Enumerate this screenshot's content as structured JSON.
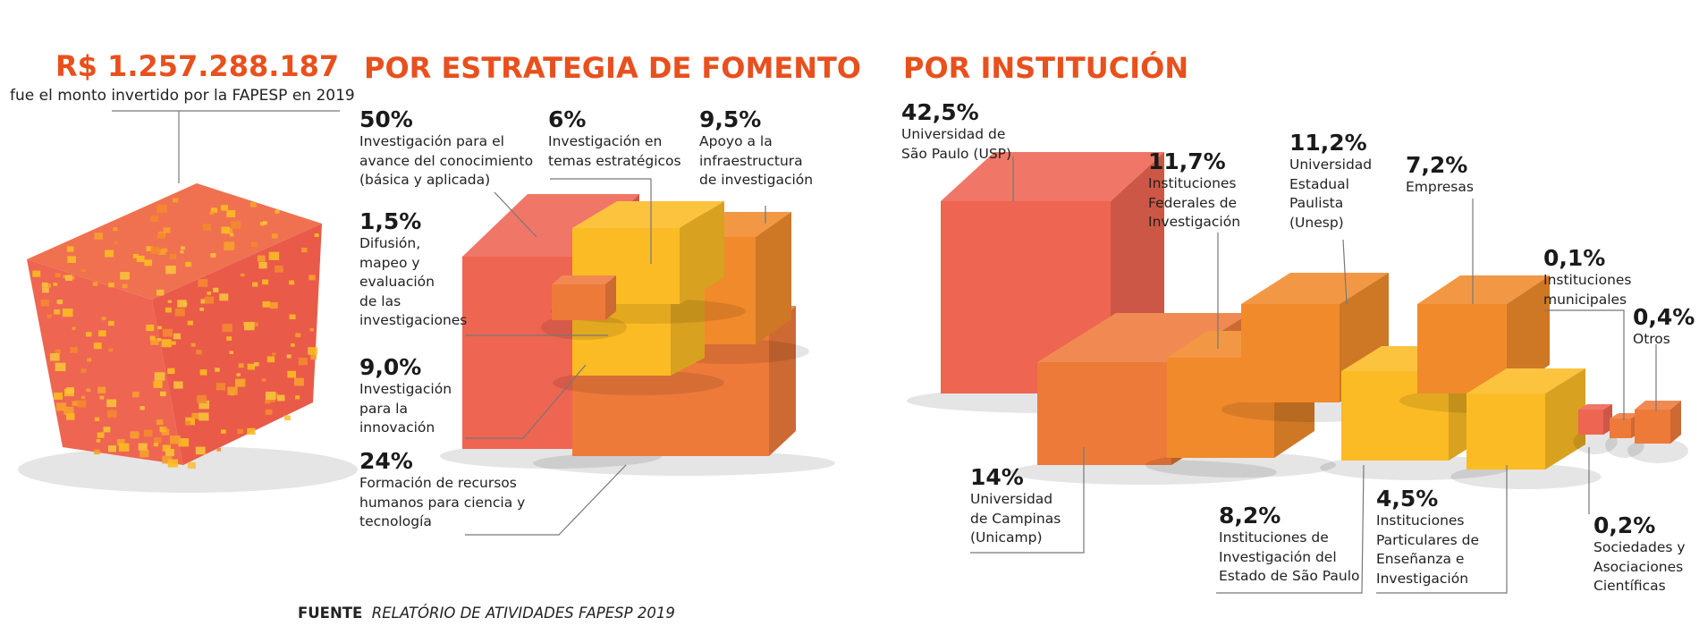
{
  "total": {
    "amount": "R$ 1.257.288.187",
    "caption": "fue el monto invertido por la FAPESP en 2019"
  },
  "colors": {
    "red": "#ee6552",
    "orange": "#f08a2b",
    "dark_orange": "#ee7a3a",
    "yellow": "#fbbb24",
    "title": "#e8501d"
  },
  "chart_data": [
    {
      "type": "pie",
      "title": "POR ESTRATEGIA DE FOMENTO",
      "slices": [
        {
          "value": 50,
          "pct_label": "50%",
          "label": "Investigación para el avance del conocimiento (básica y aplicada)",
          "color": "#ee6552"
        },
        {
          "value": 6,
          "pct_label": "6%",
          "label": "Investigación en temas estratégicos",
          "color": "#fbbb24"
        },
        {
          "value": 9.5,
          "pct_label": "9,5%",
          "label": "Apoyo a la infraestructura de investigación",
          "color": "#f08a2b"
        },
        {
          "value": 1.5,
          "pct_label": "1,5%",
          "label": "Difusión, mapeo y evaluación de las investigaciones",
          "color": "#ee6552"
        },
        {
          "value": 9.0,
          "pct_label": "9,0%",
          "label": "Investigación para la innovación",
          "color": "#fbbb24"
        },
        {
          "value": 24,
          "pct_label": "24%",
          "label": "Formación de recursos humanos para ciencia y tecnología",
          "color": "#ee7a3a"
        }
      ]
    },
    {
      "type": "bar",
      "title": "POR INSTITUCIÓN",
      "categories": [
        "Universidad de São Paulo (USP)",
        "Universidad de Campinas (Unicamp)",
        "Instituciones Federales de Investigación",
        "Universidad Estadual Paulista (Unesp)",
        "Instituciones de Investigación del Estado de São Paulo",
        "Empresas",
        "Instituciones Particulares de Enseñanza e Investigación",
        "Sociedades y Asociaciones Científicas",
        "Instituciones municipales",
        "Otros"
      ],
      "values": [
        42.5,
        14,
        11.7,
        11.2,
        8.2,
        7.2,
        4.5,
        0.2,
        0.1,
        0.4
      ],
      "value_labels": [
        "42,5%",
        "14%",
        "11,7%",
        "11,2%",
        "8,2%",
        "7,2%",
        "4,5%",
        "0,2%",
        "0,1%",
        "0,4%"
      ]
    }
  ],
  "labels": {
    "fomento": [
      {
        "pct": "50%",
        "desc": "Investigación para el\navance del conocimiento\n(básica y aplicada)"
      },
      {
        "pct": "6%",
        "desc": "Investigación en\ntemas estratégicos"
      },
      {
        "pct": "9,5%",
        "desc": "Apoyo a la\ninfraestructura\nde investigación"
      },
      {
        "pct": "1,5%",
        "desc": "Difusión,\nmapeo y\nevaluación\nde las\ninvestigaciones"
      },
      {
        "pct": "9,0%",
        "desc": "Investigación\npara la\ninnovación"
      },
      {
        "pct": "24%",
        "desc": "Formación de recursos\nhumanos para ciencia y\ntecnología"
      }
    ],
    "institucion": [
      {
        "pct": "42,5%",
        "desc": "Universidad de\nSão Paulo (USP)"
      },
      {
        "pct": "14%",
        "desc": "Universidad\nde Campinas\n(Unicamp)"
      },
      {
        "pct": "11,7%",
        "desc": "Instituciones\nFederales de\nInvestigación"
      },
      {
        "pct": "11,2%",
        "desc": "Universidad\nEstadual\nPaulista\n(Unesp)"
      },
      {
        "pct": "8,2%",
        "desc": "Instituciones de\nInvestigación del\nEstado de São Paulo"
      },
      {
        "pct": "7,2%",
        "desc": "Empresas"
      },
      {
        "pct": "4,5%",
        "desc": "Instituciones\nParticulares de\nEnseñanza e\nInvestigación"
      },
      {
        "pct": "0,2%",
        "desc": "Sociedades y\nAsociaciones\nCientíficas"
      },
      {
        "pct": "0,1%",
        "desc": "Instituciones\nmunicipales"
      },
      {
        "pct": "0,4%",
        "desc": "Otros"
      }
    ]
  },
  "source": {
    "label": "FUENTE",
    "text": "RELATÓRIO DE ATIVIDADES FAPESP 2019"
  }
}
